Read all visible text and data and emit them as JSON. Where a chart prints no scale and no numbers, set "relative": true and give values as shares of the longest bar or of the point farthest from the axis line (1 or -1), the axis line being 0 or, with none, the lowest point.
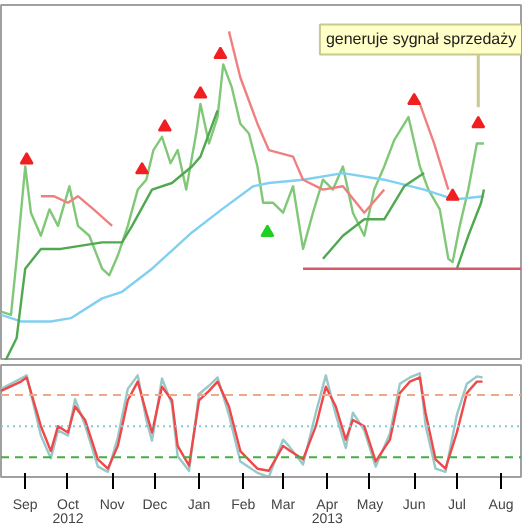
{
  "chart_data": [
    {
      "type": "line",
      "relative": true,
      "tick_labels": false,
      "xlim": [
        "2012-08-15",
        "2013-08-15"
      ],
      "annotations": [
        {
          "text": "generuje sygnał sprzedaży",
          "x": "2013-07-16",
          "y": 0.72
        }
      ],
      "series": [
        {
          "color": "#80c878",
          "x": [
            "2012-08-15",
            "2012-08-22",
            "2012-08-26",
            "2012-09-01",
            "2012-09-05",
            "2012-09-12",
            "2012-09-18",
            "2012-09-24",
            "2012-10-02",
            "2012-10-08",
            "2012-10-16",
            "2012-10-25",
            "2012-10-30",
            "2012-11-05",
            "2012-11-12",
            "2012-11-19",
            "2012-11-25",
            "2012-11-30",
            "2012-12-06",
            "2012-12-12",
            "2012-12-17",
            "2012-12-23",
            "2012-12-30",
            "2013-01-02",
            "2013-01-08",
            "2013-01-14",
            "2013-01-18",
            "2013-01-24",
            "2013-01-30",
            "2013-02-05",
            "2013-02-11",
            "2013-02-15",
            "2013-02-22",
            "2013-03-01",
            "2013-03-08",
            "2013-03-15",
            "2013-03-22",
            "2013-03-29",
            "2013-04-05",
            "2013-04-12",
            "2013-04-19",
            "2013-04-27",
            "2013-05-04",
            "2013-05-11",
            "2013-05-18",
            "2013-05-28",
            "2013-06-05",
            "2013-06-11",
            "2013-06-19",
            "2013-06-25",
            "2013-06-28",
            "2013-07-03",
            "2013-07-09",
            "2013-07-15",
            "2013-07-20"
          ],
          "values": [
            0.15,
            0.14,
            0.31,
            0.59,
            0.45,
            0.38,
            0.46,
            0.41,
            0.53,
            0.41,
            0.38,
            0.28,
            0.26,
            0.32,
            0.41,
            0.52,
            0.55,
            0.64,
            0.68,
            0.6,
            0.64,
            0.52,
            0.69,
            0.78,
            0.66,
            0.74,
            0.9,
            0.83,
            0.72,
            0.69,
            0.59,
            0.48,
            0.48,
            0.45,
            0.53,
            0.34,
            0.45,
            0.55,
            0.52,
            0.59,
            0.45,
            0.38,
            0.52,
            0.59,
            0.67,
            0.74,
            0.59,
            0.52,
            0.46,
            0.31,
            0.3,
            0.41,
            0.52,
            0.66,
            0.66
          ]
        },
        {
          "color": "#80d0f0",
          "x": [
            "2012-08-15",
            "2012-08-29",
            "2012-09-19",
            "2012-10-03",
            "2012-10-25",
            "2012-11-08",
            "2012-11-29",
            "2012-12-27",
            "2013-01-17",
            "2013-02-08",
            "2013-02-19",
            "2013-03-15",
            "2013-04-12",
            "2013-05-11",
            "2013-06-08",
            "2013-06-29",
            "2013-07-20"
          ],
          "values": [
            0.14,
            0.12,
            0.12,
            0.13,
            0.19,
            0.21,
            0.28,
            0.39,
            0.46,
            0.53,
            0.54,
            0.55,
            0.57,
            0.55,
            0.52,
            0.49,
            0.5
          ]
        },
        {
          "color": "#f08080",
          "x": [
            "2012-09-12",
            "2012-09-21",
            "2012-10-01",
            "2012-10-08",
            "2012-10-19",
            "2012-11-01",
            "2012-11-04",
            "2013-01-22",
            "2013-01-30",
            "2013-02-11",
            "2013-02-19",
            "2013-03-08",
            "2013-03-15",
            "2013-03-29",
            "2013-04-12",
            "2013-04-27",
            "2013-05-11",
            "2013-05-18",
            "2013-06-05",
            "2013-06-15",
            "2013-06-25"
          ],
          "values": [
            0.5,
            0.5,
            0.48,
            0.5,
            0.46,
            0.41,
            null,
            1.0,
            0.86,
            0.72,
            0.64,
            0.62,
            0.55,
            0.52,
            0.53,
            0.45,
            0.52,
            null,
            0.78,
            0.66,
            0.52
          ]
        },
        {
          "color": "#50a850",
          "x": [
            "2012-08-18",
            "2012-08-26",
            "2012-09-01",
            "2012-09-12",
            "2012-09-26",
            "2012-10-25",
            "2012-11-08",
            "2012-11-15",
            "2012-11-29",
            "2012-12-13",
            "2012-12-27",
            "2013-01-02",
            "2013-01-14",
            "2013-01-18",
            "2013-03-29",
            "2013-04-12",
            "2013-04-27",
            "2013-05-11",
            "2013-05-25",
            "2013-06-08",
            "2013-06-15",
            "2013-07-01",
            "2013-07-09",
            "2013-07-18",
            "2013-07-20"
          ],
          "values": [
            0.0,
            0.07,
            0.28,
            0.34,
            0.34,
            0.36,
            0.36,
            0.41,
            0.52,
            0.54,
            0.59,
            0.62,
            0.76,
            null,
            0.31,
            0.38,
            0.43,
            0.43,
            0.53,
            0.57,
            null,
            0.28,
            0.38,
            0.48,
            0.52
          ]
        },
        {
          "color": "#d85868",
          "x": [
            "2013-03-15",
            "2013-08-15"
          ],
          "values": [
            0.28,
            0.28
          ]
        },
        {
          "type": "scatter",
          "marker": "triangle",
          "color": "#f02020",
          "x": [
            "2012-09-02",
            "2012-11-22",
            "2012-12-08",
            "2013-01-02",
            "2013-01-16",
            "2013-06-01",
            "2013-06-28",
            "2013-07-16"
          ],
          "values": [
            0.61,
            0.58,
            0.71,
            0.81,
            0.93,
            0.79,
            0.5,
            0.72
          ]
        },
        {
          "type": "scatter",
          "marker": "triangle",
          "color": "#20d020",
          "x": [
            "2013-02-18"
          ],
          "values": [
            0.39
          ]
        }
      ]
    },
    {
      "type": "line",
      "relative": true,
      "tick_labels": "x",
      "xlim": [
        "2012-08-15",
        "2013-08-15"
      ],
      "xticks": [
        {
          "value": "2012-09-01",
          "label": "Sep"
        },
        {
          "value": "2012-10-01",
          "label": "Oct\n2012"
        },
        {
          "value": "2012-11-01",
          "label": "Nov"
        },
        {
          "value": "2012-12-01",
          "label": "Dec"
        },
        {
          "value": "2013-01-01",
          "label": "Jan"
        },
        {
          "value": "2013-02-01",
          "label": "Feb"
        },
        {
          "value": "2013-03-01",
          "label": "Mar"
        },
        {
          "value": "2013-04-01",
          "label": "Apr\n2013"
        },
        {
          "value": "2013-05-01",
          "label": "May"
        },
        {
          "value": "2013-06-01",
          "label": "Jun"
        },
        {
          "value": "2013-07-01",
          "label": "Jul"
        },
        {
          "value": "2013-08-01",
          "label": "Aug"
        }
      ],
      "ref_lines": [
        {
          "axis": "y",
          "value": 0.79,
          "color": "#f0a888",
          "line_style": "dashed"
        },
        {
          "axis": "y",
          "value": 0.49,
          "color": "#88c8d8",
          "line_style": "dotted"
        },
        {
          "axis": "y",
          "value": 0.19,
          "color": "#40b040",
          "line_style": "dashed"
        }
      ],
      "series": [
        {
          "color": "#98c8c8",
          "x": [
            "2012-08-15",
            "2012-08-29",
            "2012-09-02",
            "2012-09-12",
            "2012-09-19",
            "2012-09-24",
            "2012-10-01",
            "2012-10-06",
            "2012-10-13",
            "2012-10-22",
            "2012-10-29",
            "2012-11-05",
            "2012-11-12",
            "2012-11-19",
            "2012-11-25",
            "2012-11-29",
            "2012-12-06",
            "2012-12-13",
            "2012-12-17",
            "2012-12-25",
            "2013-01-01",
            "2013-01-08",
            "2013-01-14",
            "2013-01-22",
            "2013-01-30",
            "2013-02-11",
            "2013-02-19",
            "2013-03-01",
            "2013-03-05",
            "2013-03-15",
            "2013-03-24",
            "2013-03-31",
            "2013-04-07",
            "2013-04-14",
            "2013-04-19",
            "2013-04-27",
            "2013-05-05",
            "2013-05-15",
            "2013-05-22",
            "2013-05-29",
            "2013-06-05",
            "2013-06-09",
            "2013-06-16",
            "2013-06-23",
            "2013-07-01",
            "2013-07-08",
            "2013-07-15",
            "2013-07-19"
          ],
          "values": [
            0.85,
            0.95,
            0.98,
            0.4,
            0.18,
            0.45,
            0.4,
            0.75,
            0.5,
            0.1,
            0.05,
            0.38,
            0.85,
            0.98,
            0.55,
            0.35,
            0.95,
            0.7,
            0.2,
            0.06,
            0.8,
            0.88,
            0.96,
            0.6,
            0.15,
            0.04,
            0.0,
            0.36,
            0.3,
            0.12,
            0.62,
            0.98,
            0.6,
            0.28,
            0.62,
            0.45,
            0.1,
            0.42,
            0.9,
            0.96,
            1.0,
            0.5,
            0.08,
            0.05,
            0.6,
            0.9,
            0.97,
            0.96
          ]
        },
        {
          "color": "#f04848",
          "x": [
            "2012-08-15",
            "2012-08-29",
            "2012-09-02",
            "2012-09-12",
            "2012-09-19",
            "2012-09-24",
            "2012-10-01",
            "2012-10-06",
            "2012-10-13",
            "2012-10-22",
            "2012-10-29",
            "2012-11-05",
            "2012-11-12",
            "2012-11-19",
            "2012-11-25",
            "2012-11-29",
            "2012-12-06",
            "2012-12-13",
            "2012-12-17",
            "2012-12-25",
            "2013-01-01",
            "2013-01-08",
            "2013-01-14",
            "2013-01-22",
            "2013-01-30",
            "2013-02-11",
            "2013-02-19",
            "2013-03-01",
            "2013-03-05",
            "2013-03-15",
            "2013-03-24",
            "2013-03-31",
            "2013-04-07",
            "2013-04-14",
            "2013-04-19",
            "2013-04-27",
            "2013-05-05",
            "2013-05-15",
            "2013-05-22",
            "2013-05-29",
            "2013-06-05",
            "2013-06-09",
            "2013-06-16",
            "2013-06-23",
            "2013-07-01",
            "2013-07-08",
            "2013-07-15",
            "2013-07-19"
          ],
          "values": [
            0.83,
            0.92,
            0.96,
            0.49,
            0.25,
            0.49,
            0.43,
            0.68,
            0.55,
            0.17,
            0.08,
            0.3,
            0.74,
            0.92,
            0.62,
            0.43,
            0.87,
            0.74,
            0.3,
            0.11,
            0.74,
            0.83,
            0.92,
            0.68,
            0.25,
            0.08,
            0.06,
            0.3,
            0.26,
            0.17,
            0.49,
            0.87,
            0.68,
            0.36,
            0.55,
            0.49,
            0.15,
            0.36,
            0.81,
            0.92,
            0.96,
            0.62,
            0.17,
            0.08,
            0.43,
            0.81,
            0.92,
            0.92
          ]
        }
      ]
    }
  ]
}
